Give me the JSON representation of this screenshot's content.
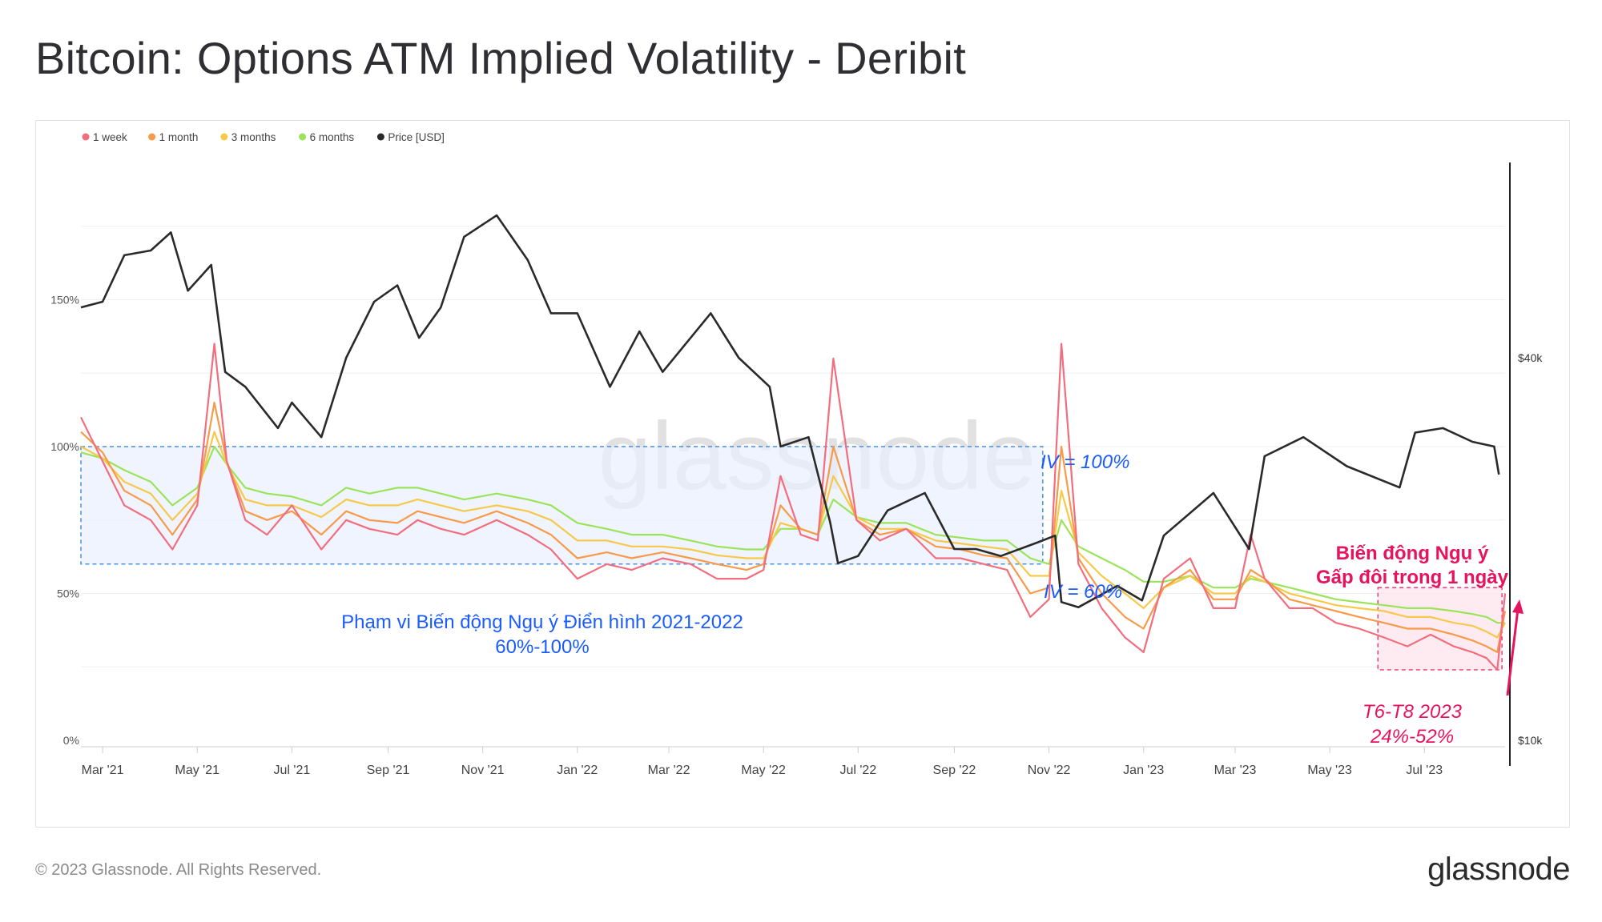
{
  "title": "Bitcoin: Options ATM Implied Volatility - Deribit",
  "copyright": "© 2023 Glassnode. All Rights Reserved.",
  "brand": "glassnode",
  "chart_data": {
    "type": "line",
    "watermark": "glassnode",
    "colors": {
      "1 week": "#f26d7d",
      "1 month": "#f79a49",
      "3 months": "#f7c94a",
      "6 months": "#9be45a",
      "Price [USD]": "#2a2a2a",
      "annotation_blue": "#1a5cff",
      "annotation_pink": "#e8135d"
    },
    "legend": [
      "1 week",
      "1 month",
      "3 months",
      "6 months",
      "Price [USD]"
    ],
    "legend_position": "top-left",
    "x_ticks": [
      "Mar '21",
      "May '21",
      "Jul '21",
      "Sep '21",
      "Nov '21",
      "Jan '22",
      "Mar '22",
      "May '22",
      "Jul '22",
      "Sep '22",
      "Nov '22",
      "Jan '23",
      "Mar '23",
      "May '23",
      "Jul '23"
    ],
    "y_left_ticks": [
      "0%",
      "50%",
      "100%",
      "150%"
    ],
    "y_left_range": [
      0,
      200
    ],
    "y_right_ticks": [
      "$10k",
      "$40k"
    ],
    "y_right_scale": "log",
    "grid": "horizontal",
    "series": [
      {
        "name": "1 week",
        "x": [
          "2021-02-15",
          "2021-03-01",
          "2021-03-15",
          "2021-04-01",
          "2021-04-15",
          "2021-05-01",
          "2021-05-12",
          "2021-05-20",
          "2021-06-01",
          "2021-06-15",
          "2021-07-01",
          "2021-07-20",
          "2021-08-05",
          "2021-08-20",
          "2021-09-07",
          "2021-09-20",
          "2021-10-05",
          "2021-10-20",
          "2021-11-10",
          "2021-11-30",
          "2021-12-15",
          "2022-01-01",
          "2022-01-20",
          "2022-02-05",
          "2022-02-25",
          "2022-03-15",
          "2022-04-01",
          "2022-04-20",
          "2022-05-01",
          "2022-05-12",
          "2022-05-25",
          "2022-06-05",
          "2022-06-15",
          "2022-06-30",
          "2022-07-15",
          "2022-08-01",
          "2022-08-20",
          "2022-09-05",
          "2022-09-20",
          "2022-10-05",
          "2022-10-20",
          "2022-11-01",
          "2022-11-09",
          "2022-11-20",
          "2022-12-05",
          "2022-12-20",
          "2023-01-01",
          "2023-01-14",
          "2023-01-31",
          "2023-02-15",
          "2023-03-01",
          "2023-03-11",
          "2023-03-20",
          "2023-04-05",
          "2023-04-20",
          "2023-05-05",
          "2023-05-20",
          "2023-06-05",
          "2023-06-20",
          "2023-07-05",
          "2023-07-20",
          "2023-08-01",
          "2023-08-10",
          "2023-08-17",
          "2023-08-22"
        ],
        "values": [
          110,
          95,
          80,
          75,
          65,
          80,
          135,
          95,
          75,
          70,
          80,
          65,
          75,
          72,
          70,
          75,
          72,
          70,
          75,
          70,
          65,
          55,
          60,
          58,
          62,
          60,
          55,
          55,
          58,
          90,
          70,
          68,
          130,
          75,
          68,
          72,
          62,
          62,
          60,
          58,
          42,
          48,
          135,
          60,
          45,
          35,
          30,
          55,
          62,
          45,
          45,
          70,
          55,
          45,
          45,
          40,
          38,
          35,
          32,
          36,
          32,
          30,
          28,
          24,
          50
        ]
      },
      {
        "name": "1 month",
        "x": [
          "2021-02-15",
          "2021-03-01",
          "2021-03-15",
          "2021-04-01",
          "2021-04-15",
          "2021-05-01",
          "2021-05-12",
          "2021-05-20",
          "2021-06-01",
          "2021-06-15",
          "2021-07-01",
          "2021-07-20",
          "2021-08-05",
          "2021-08-20",
          "2021-09-07",
          "2021-09-20",
          "2021-10-05",
          "2021-10-20",
          "2021-11-10",
          "2021-11-30",
          "2021-12-15",
          "2022-01-01",
          "2022-01-20",
          "2022-02-05",
          "2022-02-25",
          "2022-03-15",
          "2022-04-01",
          "2022-04-20",
          "2022-05-01",
          "2022-05-12",
          "2022-05-25",
          "2022-06-05",
          "2022-06-15",
          "2022-06-30",
          "2022-07-15",
          "2022-08-01",
          "2022-08-20",
          "2022-09-05",
          "2022-09-20",
          "2022-10-05",
          "2022-10-20",
          "2022-11-01",
          "2022-11-09",
          "2022-11-20",
          "2022-12-05",
          "2022-12-20",
          "2023-01-01",
          "2023-01-14",
          "2023-01-31",
          "2023-02-15",
          "2023-03-01",
          "2023-03-11",
          "2023-03-20",
          "2023-04-05",
          "2023-04-20",
          "2023-05-05",
          "2023-05-20",
          "2023-06-05",
          "2023-06-20",
          "2023-07-05",
          "2023-07-20",
          "2023-08-01",
          "2023-08-10",
          "2023-08-17",
          "2023-08-22"
        ],
        "values": [
          105,
          98,
          85,
          80,
          70,
          82,
          115,
          95,
          78,
          75,
          78,
          70,
          78,
          75,
          74,
          78,
          76,
          74,
          78,
          74,
          70,
          62,
          64,
          62,
          64,
          62,
          60,
          58,
          60,
          80,
          72,
          70,
          100,
          75,
          70,
          72,
          66,
          65,
          63,
          62,
          50,
          52,
          100,
          62,
          50,
          42,
          38,
          52,
          58,
          48,
          48,
          58,
          55,
          48,
          46,
          44,
          42,
          40,
          38,
          38,
          36,
          34,
          32,
          30,
          44
        ]
      },
      {
        "name": "3 months",
        "x": [
          "2021-02-15",
          "2021-03-01",
          "2021-03-15",
          "2021-04-01",
          "2021-04-15",
          "2021-05-01",
          "2021-05-12",
          "2021-05-20",
          "2021-06-01",
          "2021-06-15",
          "2021-07-01",
          "2021-07-20",
          "2021-08-05",
          "2021-08-20",
          "2021-09-07",
          "2021-09-20",
          "2021-10-05",
          "2021-10-20",
          "2021-11-10",
          "2021-11-30",
          "2021-12-15",
          "2022-01-01",
          "2022-01-20",
          "2022-02-05",
          "2022-02-25",
          "2022-03-15",
          "2022-04-01",
          "2022-04-20",
          "2022-05-01",
          "2022-05-12",
          "2022-05-25",
          "2022-06-05",
          "2022-06-15",
          "2022-06-30",
          "2022-07-15",
          "2022-08-01",
          "2022-08-20",
          "2022-09-05",
          "2022-09-20",
          "2022-10-05",
          "2022-10-20",
          "2022-11-01",
          "2022-11-09",
          "2022-11-20",
          "2022-12-05",
          "2022-12-20",
          "2023-01-01",
          "2023-01-14",
          "2023-01-31",
          "2023-02-15",
          "2023-03-01",
          "2023-03-11",
          "2023-03-20",
          "2023-04-05",
          "2023-04-20",
          "2023-05-05",
          "2023-05-20",
          "2023-06-05",
          "2023-06-20",
          "2023-07-05",
          "2023-07-20",
          "2023-08-01",
          "2023-08-10",
          "2023-08-17",
          "2023-08-22"
        ],
        "values": [
          100,
          96,
          88,
          84,
          75,
          84,
          105,
          94,
          82,
          80,
          80,
          76,
          82,
          80,
          80,
          82,
          80,
          78,
          80,
          78,
          75,
          68,
          68,
          66,
          66,
          65,
          63,
          62,
          62,
          74,
          72,
          70,
          90,
          76,
          72,
          72,
          68,
          67,
          66,
          65,
          56,
          56,
          85,
          64,
          56,
          50,
          45,
          52,
          56,
          50,
          50,
          56,
          54,
          50,
          48,
          46,
          45,
          44,
          42,
          42,
          40,
          39,
          37,
          35,
          40
        ]
      },
      {
        "name": "6 months",
        "x": [
          "2021-02-15",
          "2021-03-01",
          "2021-03-15",
          "2021-04-01",
          "2021-04-15",
          "2021-05-01",
          "2021-05-12",
          "2021-05-20",
          "2021-06-01",
          "2021-06-15",
          "2021-07-01",
          "2021-07-20",
          "2021-08-05",
          "2021-08-20",
          "2021-09-07",
          "2021-09-20",
          "2021-10-05",
          "2021-10-20",
          "2021-11-10",
          "2021-11-30",
          "2021-12-15",
          "2022-01-01",
          "2022-01-20",
          "2022-02-05",
          "2022-02-25",
          "2022-03-15",
          "2022-04-01",
          "2022-04-20",
          "2022-05-01",
          "2022-05-12",
          "2022-05-25",
          "2022-06-05",
          "2022-06-15",
          "2022-06-30",
          "2022-07-15",
          "2022-08-01",
          "2022-08-20",
          "2022-09-05",
          "2022-09-20",
          "2022-10-05",
          "2022-10-20",
          "2022-11-01",
          "2022-11-09",
          "2022-11-20",
          "2022-12-05",
          "2022-12-20",
          "2023-01-01",
          "2023-01-14",
          "2023-01-31",
          "2023-02-15",
          "2023-03-01",
          "2023-03-11",
          "2023-03-20",
          "2023-04-05",
          "2023-04-20",
          "2023-05-05",
          "2023-05-20",
          "2023-06-05",
          "2023-06-20",
          "2023-07-05",
          "2023-07-20",
          "2023-08-01",
          "2023-08-10",
          "2023-08-17",
          "2023-08-22"
        ],
        "values": [
          98,
          96,
          92,
          88,
          80,
          86,
          100,
          94,
          86,
          84,
          83,
          80,
          86,
          84,
          86,
          86,
          84,
          82,
          84,
          82,
          80,
          74,
          72,
          70,
          70,
          68,
          66,
          65,
          65,
          72,
          72,
          70,
          82,
          76,
          74,
          74,
          70,
          69,
          68,
          68,
          62,
          60,
          75,
          66,
          62,
          58,
          54,
          54,
          56,
          52,
          52,
          55,
          54,
          52,
          50,
          48,
          47,
          46,
          45,
          45,
          44,
          43,
          42,
          40,
          40
        ]
      },
      {
        "name": "Price [USD]",
        "x": [
          "2021-02-15",
          "2021-03-01",
          "2021-03-15",
          "2021-04-01",
          "2021-04-14",
          "2021-04-25",
          "2021-05-10",
          "2021-05-19",
          "2021-06-01",
          "2021-06-22",
          "2021-07-01",
          "2021-07-20",
          "2021-08-05",
          "2021-08-23",
          "2021-09-07",
          "2021-09-21",
          "2021-10-05",
          "2021-10-20",
          "2021-11-10",
          "2021-11-30",
          "2021-12-15",
          "2022-01-01",
          "2022-01-22",
          "2022-02-10",
          "2022-02-25",
          "2022-03-28",
          "2022-04-15",
          "2022-05-05",
          "2022-05-12",
          "2022-05-30",
          "2022-06-13",
          "2022-06-18",
          "2022-07-01",
          "2022-07-20",
          "2022-08-13",
          "2022-09-01",
          "2022-09-15",
          "2022-10-01",
          "2022-10-25",
          "2022-11-05",
          "2022-11-09",
          "2022-11-20",
          "2022-12-15",
          "2022-12-31",
          "2023-01-14",
          "2023-02-15",
          "2023-03-10",
          "2023-03-20",
          "2023-04-14",
          "2023-05-12",
          "2023-06-15",
          "2023-06-25",
          "2023-07-13",
          "2023-08-01",
          "2023-08-15",
          "2023-08-18"
        ],
        "values": [
          48000,
          49000,
          58000,
          59000,
          63000,
          51000,
          56000,
          38000,
          36000,
          31000,
          34000,
          30000,
          40000,
          49000,
          52000,
          43000,
          48000,
          62000,
          67000,
          57000,
          47000,
          47000,
          36000,
          44000,
          38000,
          47000,
          40000,
          36000,
          29000,
          30000,
          22000,
          19000,
          19500,
          23000,
          24500,
          20000,
          20000,
          19500,
          20500,
          21000,
          16500,
          16200,
          17500,
          16600,
          21000,
          24500,
          20000,
          28000,
          30000,
          27000,
          25000,
          30500,
          31000,
          29500,
          29000,
          26200
        ]
      }
    ],
    "annotations": {
      "range_box_label_1": "Phạm vi Biến động Ngụ ý Điển hình 2021-2022",
      "range_box_label_2": "60%-100%",
      "iv_100": "IV = 100%",
      "iv_60": "IV = 60%",
      "recent_label_1": "T6-T8 2023",
      "recent_label_2": "24%-52%",
      "spike_label_1": "Biến động Ngụ ý",
      "spike_label_2": "Gấp đôi trong 1 ngày",
      "range_box": {
        "x_start": "2021-02-15",
        "x_end": "2022-10-28",
        "y_low": 60,
        "y_high": 100
      },
      "recent_box": {
        "x_start": "2023-06-01",
        "x_end": "2023-08-20",
        "y_low": 24,
        "y_high": 52
      }
    }
  }
}
